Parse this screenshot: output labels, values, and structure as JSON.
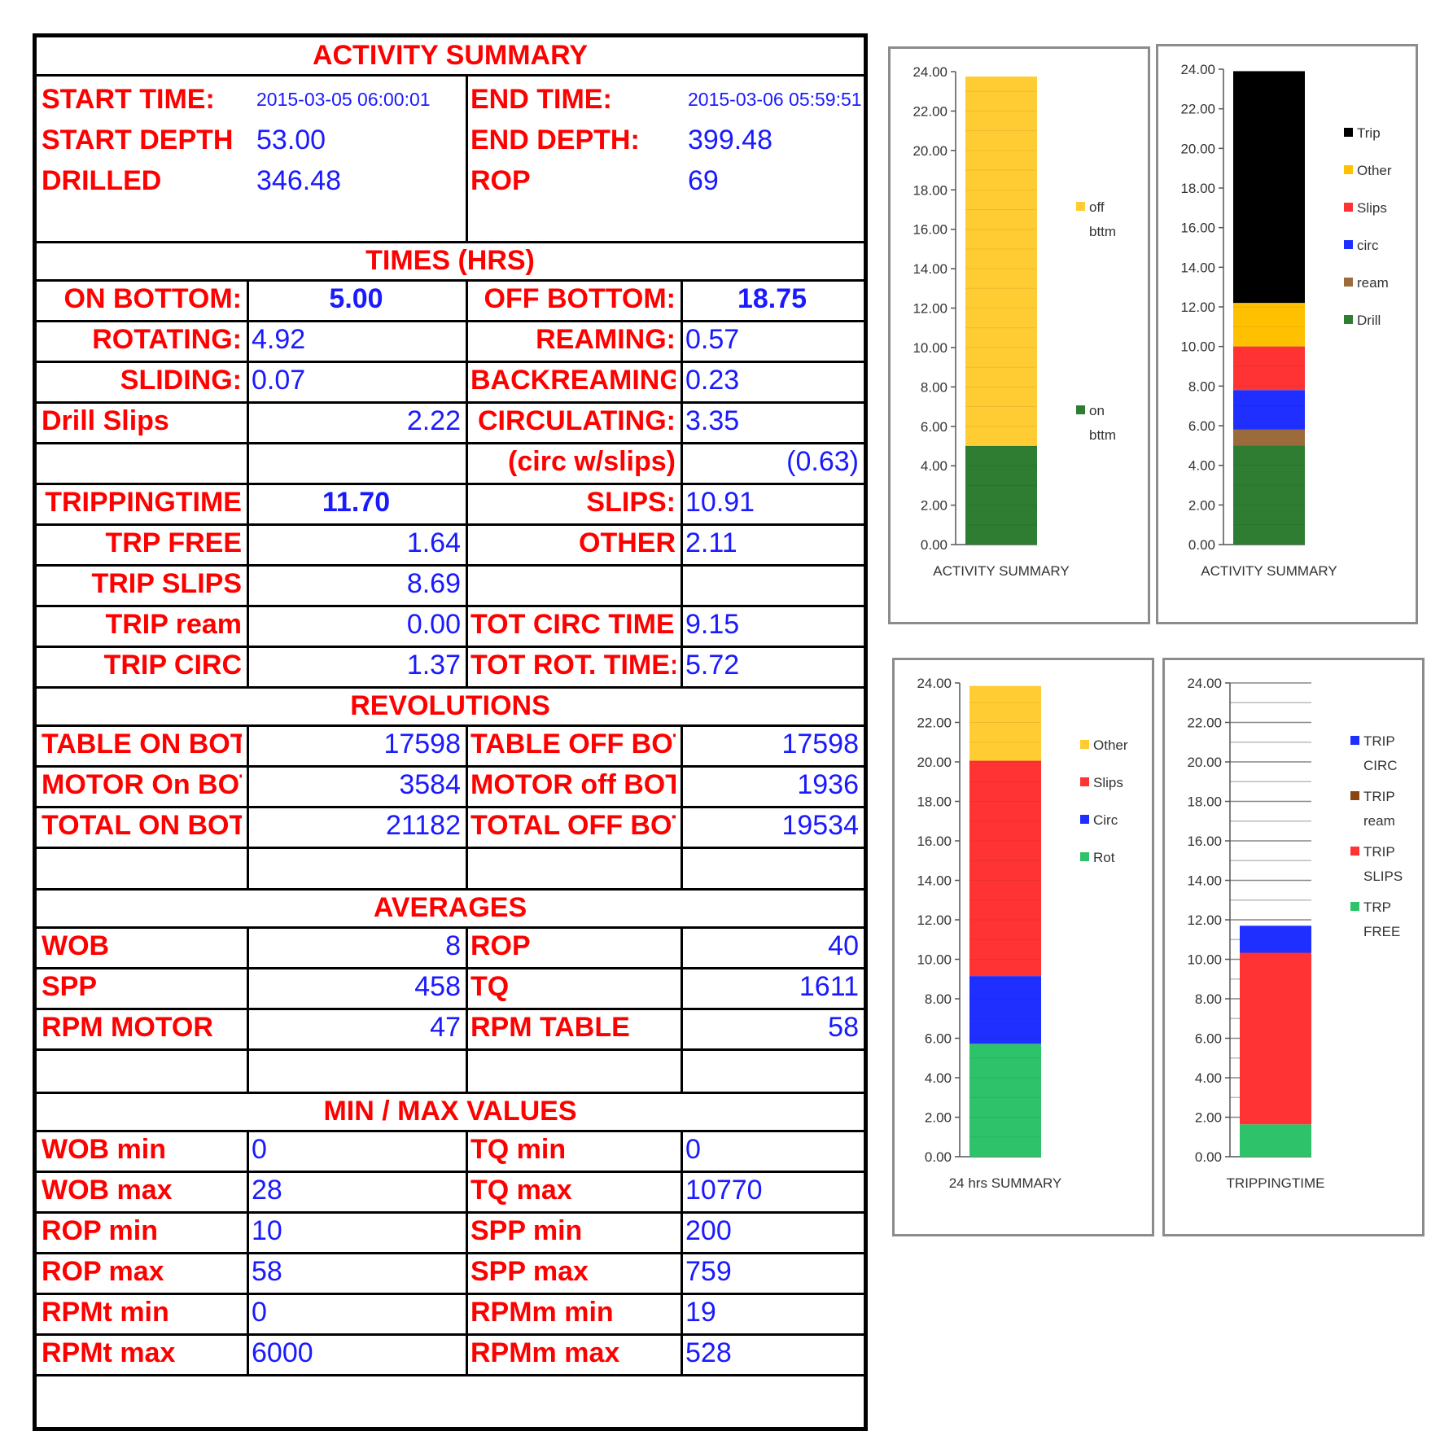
{
  "summary": {
    "title": "ACTIVITY SUMMARY",
    "start_time_label": "START TIME:",
    "start_time": "2015-03-05 06:00:01",
    "end_time_label": "END TIME:",
    "end_time": "2015-03-06 05:59:51",
    "start_depth_label": "START DEPTH",
    "start_depth": "53.00",
    "end_depth_label": "END DEPTH:",
    "end_depth": "399.48",
    "drilled_label": "DRILLED",
    "drilled": "346.48",
    "rop_label": "ROP",
    "rop": "69"
  },
  "times": {
    "title": "TIMES (HRS)",
    "rows": [
      {
        "l1": "ON BOTTOM:",
        "v1": "5.00",
        "l2": "OFF BOTTOM:",
        "v2": "18.75"
      },
      {
        "l1": "ROTATING:",
        "v1": "4.92",
        "l2": "REAMING:",
        "v2": "0.57"
      },
      {
        "l1": "SLIDING:",
        "v1": "0.07",
        "l2": "BACKREAMING",
        "v2": "0.23"
      },
      {
        "l1": "Drill Slips",
        "v1": "2.22",
        "l2": "CIRCULATING:",
        "v2": "3.35"
      },
      {
        "l1": "",
        "v1": "",
        "l2": "(circ w/slips)",
        "v2": "(0.63)"
      },
      {
        "l1": "TRIPPINGTIME",
        "v1": "11.70",
        "l2": "SLIPS:",
        "v2": "10.91"
      },
      {
        "l1": "TRP FREE",
        "v1": "1.64",
        "l2": "OTHER",
        "v2": "2.11"
      },
      {
        "l1": "TRIP SLIPS",
        "v1": "8.69",
        "l2": "",
        "v2": ""
      },
      {
        "l1": "TRIP ream",
        "v1": "0.00",
        "l2": "TOT CIRC TIME:",
        "v2": "9.15"
      },
      {
        "l1": "TRIP CIRC",
        "v1": "1.37",
        "l2": "TOT ROT. TIME:",
        "v2": "5.72"
      }
    ]
  },
  "revolutions": {
    "title": "REVOLUTIONS",
    "rows": [
      {
        "l1": "TABLE ON BOTT",
        "v1": "17598",
        "l2": "TABLE OFF BOT",
        "v2": "17598"
      },
      {
        "l1": "MOTOR On BOTT",
        "v1": "3584",
        "l2": "MOTOR off BOTT",
        "v2": "1936"
      },
      {
        "l1": "TOTAL ON BOTT",
        "v1": "21182",
        "l2": "TOTAL OFF BOT",
        "v2": "19534"
      }
    ]
  },
  "averages": {
    "title": "AVERAGES",
    "rows": [
      {
        "l1": "WOB",
        "v1": "8",
        "l2": "ROP",
        "v2": "40"
      },
      {
        "l1": "SPP",
        "v1": "458",
        "l2": "TQ",
        "v2": "1611"
      },
      {
        "l1": "RPM MOTOR",
        "v1": "47",
        "l2": "RPM TABLE",
        "v2": "58"
      }
    ]
  },
  "minmax": {
    "title": "MIN / MAX VALUES",
    "rows": [
      {
        "l1": "WOB min",
        "v1": "0",
        "l2": "TQ min",
        "v2": "0"
      },
      {
        "l1": "WOB max",
        "v1": "28",
        "l2": "TQ max",
        "v2": "10770"
      },
      {
        "l1": "ROP min",
        "v1": "10",
        "l2": "SPP min",
        "v2": "200"
      },
      {
        "l1": "ROP max",
        "v1": "58",
        "l2": "SPP max",
        "v2": "759"
      },
      {
        "l1": "RPMt min",
        "v1": "0",
        "l2": "RPMm min",
        "v2": "19"
      },
      {
        "l1": "RPMt max",
        "v1": "6000",
        "l2": "RPMm max",
        "v2": "528"
      }
    ]
  },
  "chart_data": [
    {
      "type": "bar",
      "stacked": true,
      "categories": [
        "ACTIVITY SUMMARY"
      ],
      "ylim": [
        0,
        24
      ],
      "yticks": [
        "0.00",
        "2.00",
        "4.00",
        "6.00",
        "8.00",
        "10.00",
        "12.00",
        "14.00",
        "16.00",
        "18.00",
        "20.00",
        "22.00",
        "24.00"
      ],
      "series": [
        {
          "name": "on bttm",
          "values": [
            5.0
          ],
          "color": "#2e7d32"
        },
        {
          "name": "off bttm",
          "values": [
            18.75
          ],
          "color": "#ffcc33"
        }
      ],
      "legend": [
        {
          "name": "off bttm",
          "color": "#ffcc33"
        },
        {
          "name": "on bttm",
          "color": "#2e7d32"
        }
      ]
    },
    {
      "type": "bar",
      "stacked": true,
      "categories": [
        "ACTIVITY SUMMARY"
      ],
      "ylim": [
        0,
        24
      ],
      "yticks": [
        "0.00",
        "2.00",
        "4.00",
        "6.00",
        "8.00",
        "10.00",
        "12.00",
        "14.00",
        "16.00",
        "18.00",
        "20.00",
        "22.00",
        "24.00"
      ],
      "series": [
        {
          "name": "Drill",
          "values": [
            5.0
          ],
          "color": "#2e7d32"
        },
        {
          "name": "ream",
          "values": [
            0.8
          ],
          "color": "#9c6b3c"
        },
        {
          "name": "circ",
          "values": [
            2.0
          ],
          "color": "#1f2fff"
        },
        {
          "name": "Slips",
          "values": [
            2.2
          ],
          "color": "#ff3333"
        },
        {
          "name": "Other",
          "values": [
            2.2
          ],
          "color": "#ffc000"
        },
        {
          "name": "Trip",
          "values": [
            11.7
          ],
          "color": "#000000"
        }
      ],
      "legend": [
        {
          "name": "Trip",
          "color": "#000000"
        },
        {
          "name": "Other",
          "color": "#ffc000"
        },
        {
          "name": "Slips",
          "color": "#ff3333"
        },
        {
          "name": "circ",
          "color": "#1f2fff"
        },
        {
          "name": "ream",
          "color": "#9c6b3c"
        },
        {
          "name": "Drill",
          "color": "#2e7d32"
        }
      ]
    },
    {
      "type": "bar",
      "stacked": true,
      "categories": [
        "24 hrs SUMMARY"
      ],
      "ylim": [
        0,
        24
      ],
      "yticks": [
        "0.00",
        "2.00",
        "4.00",
        "6.00",
        "8.00",
        "10.00",
        "12.00",
        "14.00",
        "16.00",
        "18.00",
        "20.00",
        "22.00",
        "24.00"
      ],
      "series": [
        {
          "name": "Rot",
          "values": [
            5.72
          ],
          "color": "#2ec26a"
        },
        {
          "name": "Circ",
          "values": [
            3.43
          ],
          "color": "#1f2fff"
        },
        {
          "name": "Slips",
          "values": [
            10.91
          ],
          "color": "#ff3333"
        },
        {
          "name": "Other",
          "values": [
            3.79
          ],
          "color": "#ffcc33"
        }
      ],
      "legend": [
        {
          "name": "Other",
          "color": "#ffcc33"
        },
        {
          "name": "Slips",
          "color": "#ff3333"
        },
        {
          "name": "Circ",
          "color": "#1f2fff"
        },
        {
          "name": "Rot",
          "color": "#2ec26a"
        }
      ]
    },
    {
      "type": "bar",
      "stacked": true,
      "categories": [
        "TRIPPINGTIME"
      ],
      "ylim": [
        0,
        24
      ],
      "yticks": [
        "0.00",
        "2.00",
        "4.00",
        "6.00",
        "8.00",
        "10.00",
        "12.00",
        "14.00",
        "16.00",
        "18.00",
        "20.00",
        "22.00",
        "24.00"
      ],
      "series": [
        {
          "name": "TRP FREE",
          "values": [
            1.64
          ],
          "color": "#2ec26a"
        },
        {
          "name": "TRIP SLIPS",
          "values": [
            8.69
          ],
          "color": "#ff3333"
        },
        {
          "name": "TRIP ream",
          "values": [
            0.0
          ],
          "color": "#8b4513"
        },
        {
          "name": "TRIP CIRC",
          "values": [
            1.37
          ],
          "color": "#1f2fff"
        }
      ],
      "legend": [
        {
          "name": "TRIP CIRC",
          "color": "#1f2fff"
        },
        {
          "name": "TRIP ream",
          "color": "#8b4513"
        },
        {
          "name": "TRIP SLIPS",
          "color": "#ff3333"
        },
        {
          "name": "TRP FREE",
          "color": "#2ec26a"
        }
      ]
    }
  ]
}
